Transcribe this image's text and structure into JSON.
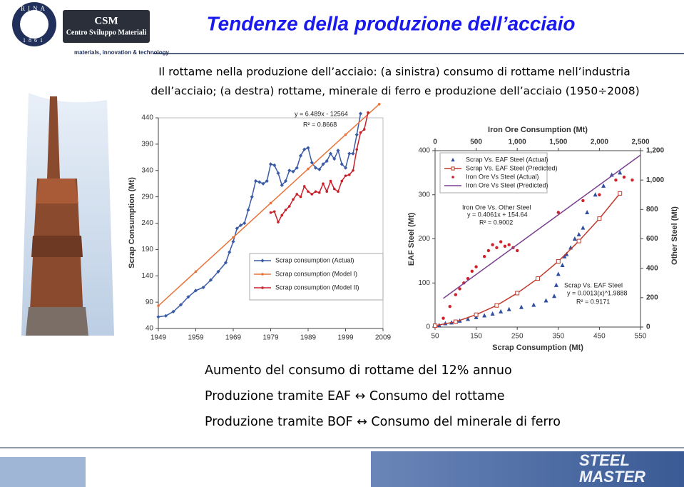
{
  "header": {
    "logo": {
      "ring": "RINA",
      "year": "1861",
      "brand": "CSM",
      "brand_name": "Centro Sviluppo Materiali",
      "tagline": "materials, innovation & technology"
    },
    "title": "Tendenze della produzione dell’acciaio"
  },
  "subtitle": [
    "Il rottame nella produzione dell’acciaio: (a sinistra) consumo di rottame nell’industria",
    "dell’acciaio; (a destra) rottame, minerale di ferro e produzione dell’acciaio (1950÷2008)"
  ],
  "chart_data": [
    {
      "type": "line",
      "ylabel": "Scrap Consumption (Mt)",
      "xlim": [
        1949,
        2009
      ],
      "xticks": [
        1949,
        1959,
        1969,
        1979,
        1989,
        1999,
        2009
      ],
      "ylim": [
        40,
        440
      ],
      "yticks": [
        40,
        90,
        140,
        190,
        240,
        290,
        340,
        390,
        440
      ],
      "grid": false,
      "legend": "lower right",
      "annotations": [
        "y = 6.489x - 12564",
        "R² = 0.8668"
      ],
      "series": [
        {
          "name": "Scrap consumption (Actual)",
          "color": "#3b5ba5",
          "marker": "diamond",
          "line": true,
          "x": [
            1949,
            1951,
            1953,
            1955,
            1957,
            1959,
            1961,
            1963,
            1965,
            1967,
            1968,
            1969,
            1970,
            1971,
            1972,
            1973,
            1974,
            1975,
            1976,
            1977,
            1978,
            1979,
            1980,
            1981,
            1982,
            1983,
            1984,
            1985,
            1986,
            1987,
            1988,
            1989,
            1990,
            1991,
            1992,
            1993,
            1994,
            1995,
            1996,
            1997,
            1998,
            1999,
            2000,
            2001,
            2002,
            2003
          ],
          "values": [
            62,
            64,
            72,
            85,
            100,
            112,
            118,
            132,
            148,
            165,
            185,
            205,
            230,
            236,
            240,
            265,
            290,
            320,
            318,
            315,
            320,
            352,
            350,
            335,
            312,
            320,
            340,
            338,
            345,
            368,
            380,
            383,
            355,
            345,
            342,
            352,
            358,
            372,
            362,
            378,
            352,
            345,
            372,
            372,
            408,
            448
          ]
        },
        {
          "name": "Scrap consumption (Model I)",
          "color": "#e8733a",
          "marker": "circle",
          "line": true,
          "x": [
            1949,
            1959,
            1969,
            1979,
            1989,
            1999,
            2008
          ],
          "values": [
            83,
            148,
            213,
            278,
            343,
            408,
            466
          ]
        },
        {
          "name": "Scrap consumption (Model II)",
          "color": "#c8202a",
          "marker": "circle",
          "line": true,
          "x": [
            1979,
            1980,
            1981,
            1982,
            1983,
            1984,
            1985,
            1986,
            1987,
            1988,
            1989,
            1990,
            1991,
            1992,
            1993,
            1994,
            1995,
            1996,
            1997,
            1998,
            1999,
            2000,
            2001,
            2002,
            2003,
            2004,
            2005
          ],
          "values": [
            260,
            262,
            242,
            255,
            265,
            272,
            285,
            295,
            290,
            310,
            300,
            295,
            300,
            298,
            315,
            300,
            320,
            305,
            300,
            320,
            330,
            332,
            340,
            380,
            412,
            418,
            450
          ]
        }
      ]
    },
    {
      "type": "scatter",
      "xlabel": "Scrap Consumption (Mt)",
      "x2label": "Iron Ore Consumption (Mt)",
      "ylabel": "EAF Steel (Mt)",
      "y2label": "Other Steel (Mt)",
      "xlim": [
        50,
        550
      ],
      "xticks": [
        50,
        150,
        250,
        350,
        450,
        550
      ],
      "x2lim": [
        0,
        2500
      ],
      "x2ticks": [
        0,
        500,
        {
          "value": 1000,
          "label": "1,000"
        },
        {
          "value": 1500,
          "label": "1,500"
        },
        {
          "value": 2000,
          "label": "2,000"
        },
        {
          "value": 2500,
          "label": "2,500"
        }
      ],
      "ylim": [
        0,
        400
      ],
      "yticks": [
        0,
        100,
        200,
        300,
        400
      ],
      "y2lim": [
        0,
        1200
      ],
      "y2ticks": [
        0,
        200,
        400,
        600,
        800,
        {
          "value": 1000,
          "label": "1,000"
        },
        {
          "value": 1200,
          "label": "1,200"
        }
      ],
      "grid": false,
      "legend": "upper left",
      "annotations": [
        "Iron Ore Vs. Other Steel",
        "y = 0.4061x + 154.64",
        "R² = 0.9002",
        "Scrap Vs. EAF Steel",
        "y = 0.0013(x)^1.9888",
        "R² = 0.9171"
      ],
      "series": [
        {
          "name": "Scrap Vs. EAF Steel (Actual)",
          "color": "#2f4fa0",
          "marker": "triangle",
          "line": false,
          "x": [
            60,
            75,
            90,
            110,
            130,
            150,
            170,
            190,
            210,
            230,
            260,
            290,
            320,
            340,
            345,
            350,
            360,
            365,
            370,
            380,
            390,
            400,
            410,
            420,
            440,
            460,
            480,
            500
          ],
          "values": [
            4,
            8,
            10,
            14,
            18,
            22,
            26,
            30,
            35,
            40,
            45,
            50,
            60,
            70,
            95,
            120,
            140,
            160,
            165,
            180,
            200,
            210,
            225,
            260,
            300,
            320,
            345,
            350
          ]
        },
        {
          "name": "Scrap Vs. EAF Steel (Predicted)",
          "color": "#c0392b",
          "marker": "square",
          "line": true,
          "x": [
            50,
            100,
            150,
            200,
            250,
            300,
            350,
            400,
            450,
            500
          ],
          "values": [
            3,
            12,
            28,
            49,
            77,
            110,
            149,
            195,
            246,
            303
          ]
        },
        {
          "name": "Iron Ore Vs Steel (Actual)",
          "color": "#d0202a",
          "marker": "circle",
          "line": false,
          "axis": "y2",
          "xaxis": "x2",
          "x": [
            100,
            180,
            250,
            300,
            350,
            400,
            450,
            500,
            600,
            650,
            700,
            750,
            800,
            850,
            900,
            950,
            1000,
            1500,
            1800,
            2000,
            2200,
            2300,
            2400
          ],
          "values": [
            60,
            140,
            220,
            260,
            300,
            330,
            380,
            410,
            480,
            520,
            560,
            540,
            580,
            550,
            560,
            540,
            520,
            780,
            860,
            900,
            1000,
            1020,
            1000
          ]
        },
        {
          "name": "Iron Ore Vs Steel (Predicted)",
          "color": "#7b3f8f",
          "marker": null,
          "line": true,
          "axis": "y2",
          "xaxis": "x2",
          "x": [
            100,
            2500
          ],
          "values": [
            195,
            1170
          ]
        }
      ]
    }
  ],
  "bullets": [
    "Aumento del consumo di rottame del 12% annuo",
    "Produzione tramite EAF ↔ Consumo del rottame",
    "Produzione tramite BOF ↔ Consumo del minerale di ferro"
  ],
  "footer": {
    "logo": [
      "STEEL",
      "MASTER"
    ]
  }
}
